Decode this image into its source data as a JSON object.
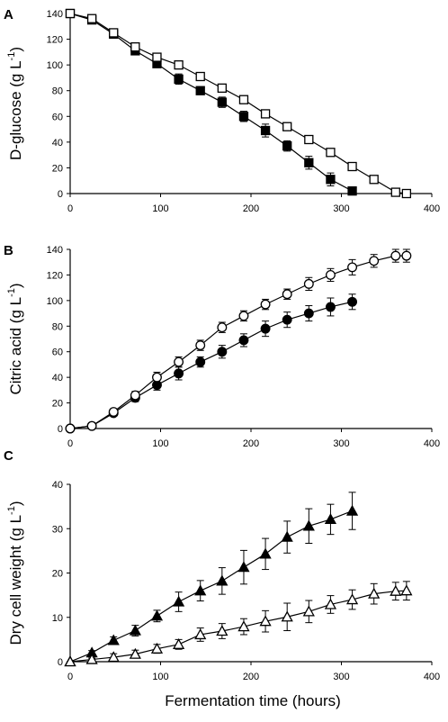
{
  "figure": {
    "xlabel": "Fermentation time (hours)"
  },
  "chart_data": [
    {
      "type": "line",
      "panel_label": "A",
      "xlabel": "Fermentation time (hours)",
      "ylabel": "D-glucose (g L-1)",
      "ylabel_main": "D-glucose (g L",
      "ylabel_sup": "-1",
      "ylabel_tail": ")",
      "xlim": [
        0,
        400
      ],
      "ylim": [
        0,
        140
      ],
      "xticks": [
        0,
        100,
        200,
        300,
        400
      ],
      "yticks": [
        0,
        20,
        40,
        60,
        80,
        100,
        120,
        140
      ],
      "series": [
        {
          "marker": "square",
          "filled": true,
          "x": [
            0,
            24,
            48,
            72,
            96,
            120,
            144,
            168,
            192,
            216,
            240,
            264,
            288,
            312
          ],
          "y": [
            140,
            135,
            124,
            111,
            101,
            89,
            80,
            71,
            60,
            49,
            37,
            24,
            11,
            2
          ],
          "err": [
            2,
            2,
            2,
            2,
            3,
            4,
            3,
            4,
            4,
            5,
            4,
            5,
            5,
            2
          ]
        },
        {
          "marker": "square",
          "filled": false,
          "x": [
            0,
            24,
            48,
            72,
            96,
            120,
            144,
            168,
            192,
            216,
            240,
            264,
            288,
            312,
            336,
            360,
            372
          ],
          "y": [
            140,
            136,
            125,
            114,
            106,
            100,
            91,
            82,
            73,
            62,
            52,
            42,
            32,
            21,
            11,
            1,
            0
          ],
          "err": [
            2,
            2,
            2,
            2,
            2,
            3,
            3,
            3,
            3,
            3,
            3,
            3,
            3,
            2,
            2,
            1,
            1
          ]
        }
      ]
    },
    {
      "type": "line",
      "panel_label": "B",
      "xlabel": "Fermentation time (hours)",
      "ylabel": "Citric acid (g L-1)",
      "ylabel_main": "Citric acid (g L",
      "ylabel_sup": "-1",
      "ylabel_tail": ")",
      "xlim": [
        0,
        400
      ],
      "ylim": [
        0,
        140
      ],
      "xticks": [
        0,
        100,
        200,
        300,
        400
      ],
      "yticks": [
        0,
        20,
        40,
        60,
        80,
        100,
        120,
        140
      ],
      "series": [
        {
          "marker": "circle",
          "filled": true,
          "x": [
            0,
            24,
            48,
            72,
            96,
            120,
            144,
            168,
            192,
            216,
            240,
            264,
            288,
            312
          ],
          "y": [
            0,
            2,
            12,
            24,
            34,
            43,
            52,
            60,
            69,
            78,
            85,
            90,
            95,
            99
          ],
          "err": [
            0,
            1,
            2,
            3,
            4,
            5,
            4,
            5,
            5,
            6,
            6,
            6,
            7,
            6
          ]
        },
        {
          "marker": "circle",
          "filled": false,
          "x": [
            0,
            24,
            48,
            72,
            96,
            120,
            144,
            168,
            192,
            216,
            240,
            264,
            288,
            312,
            336,
            360,
            372
          ],
          "y": [
            0,
            2,
            13,
            26,
            40,
            52,
            65,
            79,
            88,
            97,
            105,
            113,
            120,
            126,
            131,
            135,
            135
          ],
          "err": [
            0,
            1,
            2,
            3,
            4,
            4,
            4,
            4,
            4,
            4,
            4,
            5,
            5,
            6,
            5,
            5,
            5
          ]
        }
      ]
    },
    {
      "type": "line",
      "panel_label": "C",
      "xlabel": "Fermentation time (hours)",
      "ylabel": "Dry cell weight (g L-1)",
      "ylabel_main": "Dry cell weight (g L",
      "ylabel_sup": "-1",
      "ylabel_tail": ")",
      "xlim": [
        0,
        400
      ],
      "ylim": [
        0,
        40
      ],
      "xticks": [
        0,
        100,
        200,
        300,
        400
      ],
      "yticks": [
        0,
        10,
        20,
        30,
        40
      ],
      "series": [
        {
          "marker": "triangle",
          "filled": true,
          "x": [
            0,
            24,
            48,
            72,
            96,
            120,
            144,
            168,
            192,
            216,
            240,
            264,
            288,
            312
          ],
          "y": [
            0,
            2,
            4.8,
            7,
            10.3,
            13.5,
            16,
            18.2,
            21.3,
            24.3,
            28.1,
            30.6,
            32.1,
            34
          ],
          "err": [
            0,
            0.5,
            0.8,
            1.2,
            1.3,
            2.2,
            2.3,
            3.0,
            3.8,
            3.5,
            3.6,
            3.9,
            3.4,
            4.2
          ]
        },
        {
          "marker": "triangle",
          "filled": false,
          "x": [
            0,
            24,
            48,
            72,
            96,
            120,
            144,
            168,
            192,
            216,
            240,
            264,
            288,
            312,
            336,
            360,
            372
          ],
          "y": [
            0,
            0.5,
            1,
            1.7,
            2.9,
            3.9,
            6.1,
            6.9,
            7.9,
            9.1,
            10.1,
            11.3,
            12.9,
            14,
            15.3,
            15.9,
            16
          ],
          "err": [
            0,
            0.3,
            0.8,
            0.9,
            1.0,
            1.1,
            1.5,
            1.7,
            1.8,
            2.4,
            3.1,
            2.5,
            2.0,
            2.2,
            2.3,
            2.0,
            2.1
          ]
        }
      ]
    }
  ]
}
